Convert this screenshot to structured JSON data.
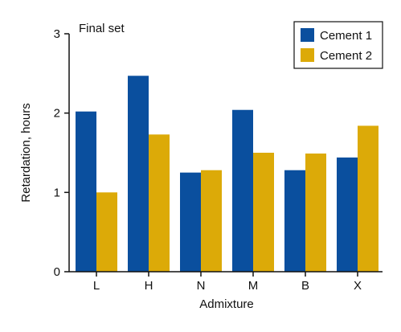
{
  "chart_data": {
    "type": "bar",
    "annotation": "Final set",
    "xlabel": "Admixture",
    "ylabel": "Retardation, hours",
    "categories": [
      "L",
      "H",
      "N",
      "M",
      "B",
      "X"
    ],
    "yticks": [
      "0",
      "1",
      "2",
      "3"
    ],
    "ylim": [
      0,
      3
    ],
    "legend_position": "top-right",
    "grid": false,
    "series": [
      {
        "name": "Cement 1",
        "color": "#0a4f9e",
        "values": [
          2.02,
          2.47,
          1.25,
          2.04,
          1.28,
          1.44
        ]
      },
      {
        "name": "Cement 2",
        "color": "#dcaa08",
        "values": [
          1.0,
          1.73,
          1.28,
          1.5,
          1.49,
          1.84
        ]
      }
    ]
  }
}
